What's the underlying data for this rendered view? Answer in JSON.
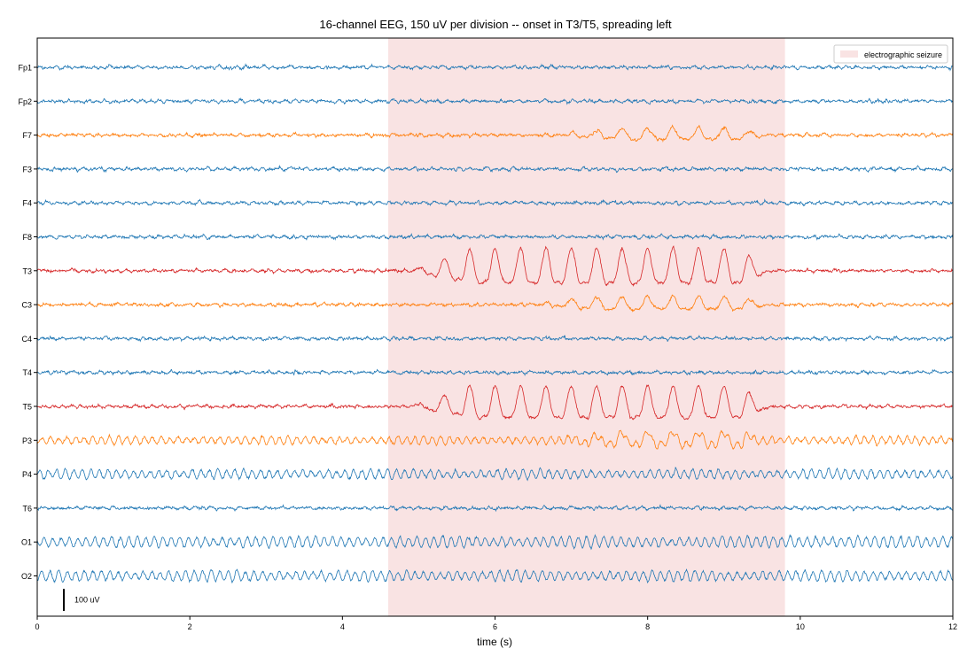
{
  "chart_data": {
    "type": "line",
    "title": "16-channel EEG, 150 uV per division -- onset in T3/T5, spreading left",
    "xlabel": "time (s)",
    "ylabel": "",
    "xlim": [
      0,
      12
    ],
    "x_ticks": [
      0,
      2,
      4,
      6,
      8,
      10,
      12
    ],
    "grid": false,
    "scale_uV_per_division": 150,
    "channels": [
      "Fp1",
      "Fp2",
      "F7",
      "F3",
      "F4",
      "F8",
      "T3",
      "C3",
      "C4",
      "T4",
      "T5",
      "P3",
      "P4",
      "T6",
      "O1",
      "O2"
    ],
    "channel_colors": {
      "Fp1": "#1f77b4",
      "Fp2": "#1f77b4",
      "F7": "#ff7f0e",
      "F3": "#1f77b4",
      "F4": "#1f77b4",
      "F8": "#1f77b4",
      "T3": "#d62728",
      "C3": "#ff7f0e",
      "C4": "#1f77b4",
      "T4": "#1f77b4",
      "T5": "#d62728",
      "P3": "#ff7f0e",
      "P4": "#1f77b4",
      "T6": "#1f77b4",
      "O1": "#1f77b4",
      "O2": "#1f77b4"
    },
    "seizure_interval": {
      "label": "electrographic seizure",
      "start": 4.6,
      "end": 9.8,
      "color": "#f9e3e3"
    },
    "legend": {
      "placement": "top-right",
      "entries": [
        "electrographic seizure"
      ]
    },
    "scale_bar": {
      "label": "100 uV",
      "value_uV": 100
    },
    "seizure_involvement": {
      "T3": {
        "onset": 4.9,
        "amplitude_uV": 120,
        "frequency_hz": 3.0
      },
      "T5": {
        "onset": 4.9,
        "amplitude_uV": 110,
        "frequency_hz": 3.0
      },
      "C3": {
        "onset": 6.5,
        "amplitude_uV": 45,
        "frequency_hz": 3.0
      },
      "P3": {
        "onset": 6.8,
        "amplitude_uV": 45,
        "frequency_hz": 3.0
      },
      "F7": {
        "onset": 6.8,
        "amplitude_uV": 40,
        "frequency_hz": 3.0
      }
    },
    "background_rhythm": {
      "P4": {
        "frequency_hz": 9,
        "amplitude_uV": 22
      },
      "O1": {
        "frequency_hz": 9,
        "amplitude_uV": 26
      },
      "O2": {
        "frequency_hz": 9,
        "amplitude_uV": 24
      },
      "P3": {
        "frequency_hz": 9,
        "amplitude_uV": 18
      }
    }
  }
}
